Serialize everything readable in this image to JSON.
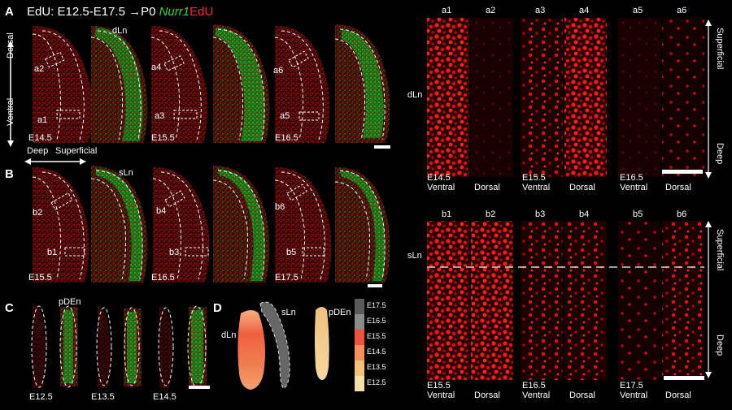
{
  "figure": {
    "title": {
      "prefix": "EdU: E12.5-E17.5 ",
      "arrow": "→",
      "p0": "P0 ",
      "green": "Nurr1",
      "red": "EdU"
    },
    "panel_letters": [
      "A",
      "B",
      "C",
      "D"
    ],
    "panelA": {
      "axis": {
        "dorsal": "Dorsal",
        "ventral": "Ventral",
        "deep": "Deep",
        "superficial": "Superficial"
      },
      "region": "dLn",
      "ages": [
        "E14.5",
        "E15.5",
        "E16.5"
      ],
      "boxes": [
        "a1",
        "a2",
        "a3",
        "a4",
        "a5",
        "a6"
      ]
    },
    "panelB": {
      "region": "sLn",
      "ages": [
        "E15.5",
        "E16.5",
        "E17.5"
      ],
      "boxes": [
        "b1",
        "b2",
        "b3",
        "b4",
        "b5",
        "b6"
      ]
    },
    "panelC": {
      "region": "pDEn",
      "ages": [
        "E12.5",
        "E13.5",
        "E14.5"
      ]
    },
    "panelD": {
      "labels": {
        "dln": "dLn",
        "sln": "sLn",
        "pden": "pDEn"
      },
      "legend": [
        "E17.5",
        "E16.5",
        "E15.5",
        "E14.5",
        "E13.5",
        "E12.5"
      ],
      "legend_colors": [
        "#5a5a5a",
        "#8a8a8a",
        "#f0503c",
        "#f5905a",
        "#f5c07a",
        "#f5e0a5"
      ]
    },
    "right_top": {
      "row_label": "dLn",
      "cols": [
        "a1",
        "a2",
        "a3",
        "a4",
        "a5",
        "a6"
      ],
      "ages": [
        "E14.5",
        "E15.5",
        "E16.5"
      ],
      "ventral": "Ventral",
      "dorsal": "Dorsal",
      "axis_top": "Superficial",
      "axis_bottom": "Deep"
    },
    "right_bottom": {
      "row_label": "sLn",
      "cols": [
        "b1",
        "b2",
        "b3",
        "b4",
        "b5",
        "b6"
      ],
      "ages": [
        "E15.5",
        "E16.5",
        "E17.5"
      ],
      "ventral": "Ventral",
      "dorsal": "Dorsal",
      "axis_top": "Superficial",
      "axis_bottom": "Deep"
    }
  }
}
